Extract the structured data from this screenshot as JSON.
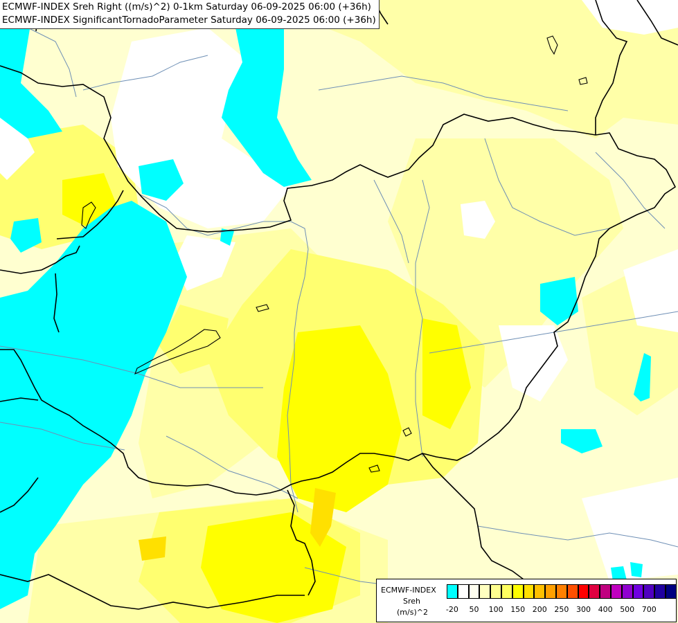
{
  "header": {
    "line1": "ECMWF-INDEX Sreh Right ((m/s)^2) 0-1km Saturday 06-09-2025 06:00 (+36h)",
    "line2": "ECMWF-INDEX SignificantTornadoParameter Saturday 06-09-2025 06:00 (+36h)"
  },
  "legend": {
    "model": "ECMWF-INDEX",
    "parameter": "Sreh",
    "unit": "(m/s)^2",
    "colors": [
      "#00ffff",
      "#ffffff",
      "#fffff0",
      "#ffffc0",
      "#ffff90",
      "#ffff60",
      "#ffff00",
      "#ffe000",
      "#ffc000",
      "#ffa000",
      "#ff8000",
      "#ff5000",
      "#ff0000",
      "#e00040",
      "#c00080",
      "#c000c0",
      "#9000d0",
      "#7000e0",
      "#5000c0",
      "#2000a0",
      "#000080"
    ],
    "ticks": [
      {
        "label": "-20",
        "index": 0.5
      },
      {
        "label": "50",
        "index": 2.5
      },
      {
        "label": "100",
        "index": 4.5
      },
      {
        "label": "150",
        "index": 6.5
      },
      {
        "label": "200",
        "index": 8.5
      },
      {
        "label": "250",
        "index": 10.5
      },
      {
        "label": "300",
        "index": 12.5
      },
      {
        "label": "400",
        "index": 14.5
      },
      {
        "label": "500",
        "index": 16.5
      },
      {
        "label": "700",
        "index": 18.5
      }
    ]
  },
  "map": {
    "colors": {
      "cyan": "#00ffff",
      "pale": "#ffffd0",
      "light": "#ffffa8",
      "mid": "#ffff70",
      "strong": "#ffff00",
      "peak": "#ffe000",
      "border": "#000000",
      "river": "#6e8fb5"
    }
  }
}
